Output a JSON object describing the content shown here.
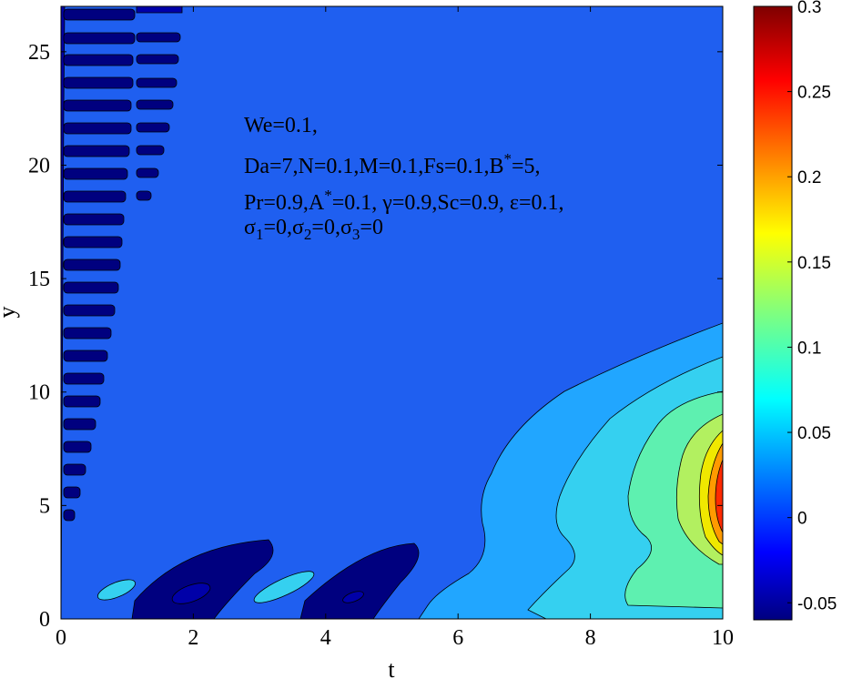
{
  "chart_data": {
    "type": "heatmap",
    "title": "",
    "xlabel": "t",
    "ylabel": "y",
    "xlim": [
      0,
      10
    ],
    "ylim": [
      0,
      27
    ],
    "xticks": [
      0,
      2,
      4,
      6,
      8,
      10
    ],
    "yticks": [
      0,
      5,
      10,
      15,
      20,
      25
    ],
    "colorbar": {
      "range": [
        -0.06,
        0.3
      ],
      "ticks": [
        -0.05,
        0,
        0.05,
        0.1,
        0.15,
        0.2,
        0.25,
        0.3
      ],
      "colormap": "jet"
    },
    "annotation": {
      "line1": "We=0.1,",
      "line2": "Da=7,N=0.1,M=0.1,Fs=0.1,B",
      "line2_sup": "*",
      "line2_end": "=5,",
      "line3a": "Pr=0.9,A",
      "line3_sup": "*",
      "line3b": "=0.1, γ=0.9,Sc=0.9, ε=0.1,",
      "line4_s": "σ",
      "line4_sub1": "1",
      "line4_a": "=0,σ",
      "line4_sub2": "2",
      "line4_b": "=0,σ",
      "line4_sub3": "3",
      "line4_c": "=0"
    },
    "contour_bands": [
      {
        "level": "-0.05",
        "color": "#00007f"
      },
      {
        "level": "-0.04",
        "color": "#0000a8"
      },
      {
        "level": "-0.02",
        "color": "#0036ee"
      },
      {
        "level": "0",
        "color": "#1f5ff0"
      },
      {
        "level": "0.03",
        "color": "#21a6ff"
      },
      {
        "level": "0.06",
        "color": "#35d0f0"
      },
      {
        "level": "0.09",
        "color": "#5ef0b0"
      },
      {
        "level": "0.13",
        "color": "#b2f060"
      },
      {
        "level": "0.17",
        "color": "#f0e800"
      },
      {
        "level": "0.21",
        "color": "#ff9a00"
      },
      {
        "level": "0.25",
        "color": "#ff2a00"
      }
    ]
  }
}
